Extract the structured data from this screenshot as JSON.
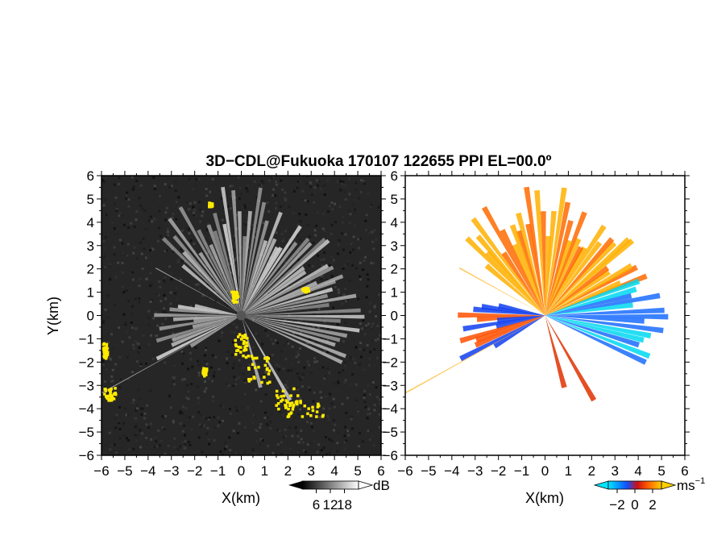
{
  "title": "3D−CDL@Fukuoka 170107 122655 PPI EL=00.0º",
  "chart_data": [
    {
      "type": "heatmap",
      "panel": "reflectivity",
      "xlabel": "X(km)",
      "ylabel": "Y(km)",
      "xlim": [
        -6,
        6
      ],
      "ylim": [
        -6,
        6
      ],
      "xticks": [
        "−6",
        "−5",
        "−4",
        "−3",
        "−2",
        "−1",
        "0",
        "1",
        "2",
        "3",
        "4",
        "5",
        "6"
      ],
      "yticks": [
        "6",
        "5",
        "4",
        "3",
        "2",
        "1",
        "0",
        "−1",
        "−2",
        "−3",
        "−4",
        "−5",
        "−6"
      ],
      "background_color": "#262626",
      "colorbar": {
        "unit": "dB",
        "ticks": [
          "6",
          "12",
          "18"
        ],
        "range": [
          0,
          24
        ],
        "colors": [
          "#000000",
          "#ffffff"
        ]
      },
      "overlay_color": "#ffea00"
    },
    {
      "type": "heatmap",
      "panel": "doppler velocity",
      "xlabel": "X(km)",
      "ylabel": "",
      "xlim": [
        -6,
        6
      ],
      "ylim": [
        -6,
        6
      ],
      "xticks": [
        "−6",
        "−5",
        "−4",
        "−3",
        "−2",
        "−1",
        "0",
        "1",
        "2",
        "3",
        "4",
        "5",
        "6"
      ],
      "yticks": [
        "6",
        "5",
        "4",
        "3",
        "2",
        "1",
        "0",
        "−1",
        "−2",
        "−3",
        "−4",
        "−5",
        "−6"
      ],
      "background_color": "#ffffff",
      "colorbar": {
        "unit": "ms",
        "unit_exp": "−1",
        "ticks": [
          "−2",
          "0",
          "2"
        ],
        "range": [
          -3,
          3
        ],
        "colors": [
          "#00e5ff",
          "#1050ff",
          "#d01010",
          "#ff6000",
          "#ffd000"
        ]
      }
    }
  ]
}
